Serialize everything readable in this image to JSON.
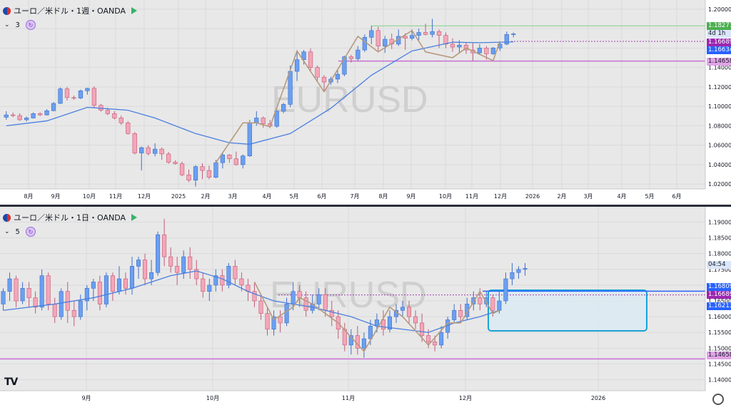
{
  "colors": {
    "up": "#6b9ff0",
    "down": "#f5a6b8",
    "ma": "#4a7fe0",
    "zigzag": "#b59a7e",
    "res_line": "#7fd08a",
    "sup_line": "#c86fd2",
    "dash_line": "#a03fb0",
    "box_stroke": "#1aa3d6",
    "box_fill": "#dceaf2",
    "hline_blue": "#2962ff",
    "tag_green": "#4caf50",
    "tag_purple": "#9c27b0",
    "tag_blue": "#2962ff",
    "tag_pink": "#e1a4e8",
    "tag_light": "#8fb4f0"
  },
  "top": {
    "title": "ユーロ／米ドル・1週・OANDA",
    "sub_count": "3",
    "watermark": "EURUSD",
    "x_labels": [
      "8月",
      "9月",
      "10月",
      "11月",
      "12月",
      "2025",
      "2月",
      "3月",
      "4月",
      "5月",
      "6月",
      "7月",
      "8月",
      "9月",
      "10月",
      "11月",
      "12月",
      "2026",
      "2月",
      "3月",
      "4月",
      "5月",
      "6月"
    ],
    "y_labels": [
      "1.20000",
      "1.18000",
      "1.16000",
      "1.14000",
      "1.12000",
      "1.10000",
      "1.08000",
      "1.06000",
      "1.04000",
      "1.02000"
    ],
    "tags": {
      "res": "1.18277",
      "countdown": "4d 1h",
      "price": "1.16689",
      "ma": "1.16634",
      "sup": "1.14658"
    },
    "ylim": [
      1.015,
      1.205
    ],
    "candles": [
      [
        1.0888,
        1.0912,
        1.0862,
        1.095
      ],
      [
        1.0912,
        1.0905,
        1.0888,
        1.0936
      ],
      [
        1.0905,
        1.0862,
        1.085,
        1.0928
      ],
      [
        1.0862,
        1.088,
        1.0845,
        1.0895
      ],
      [
        1.088,
        1.0925,
        1.0874,
        1.0938
      ],
      [
        1.0925,
        1.0912,
        1.09,
        1.094
      ],
      [
        1.0912,
        1.0955,
        1.0905,
        1.097
      ],
      [
        1.0955,
        1.103,
        1.095,
        1.1045
      ],
      [
        1.103,
        1.118,
        1.1025,
        1.1195
      ],
      [
        1.118,
        1.109,
        1.106,
        1.12
      ],
      [
        1.109,
        1.1085,
        1.1068,
        1.111
      ],
      [
        1.1085,
        1.116,
        1.1075,
        1.1172
      ],
      [
        1.116,
        1.1185,
        1.112,
        1.119
      ],
      [
        1.1185,
        1.101,
        1.0985,
        1.1205
      ],
      [
        1.101,
        1.096,
        1.0945,
        1.1025
      ],
      [
        1.096,
        1.0925,
        1.091,
        1.0985
      ],
      [
        1.0925,
        1.088,
        1.0865,
        1.095
      ],
      [
        1.088,
        1.083,
        1.081,
        1.0905
      ],
      [
        1.083,
        1.072,
        1.071,
        1.0848
      ],
      [
        1.072,
        1.052,
        1.0505,
        1.0735
      ],
      [
        1.052,
        1.0575,
        1.034,
        1.0585
      ],
      [
        1.0575,
        1.0515,
        1.0495,
        1.06
      ],
      [
        1.0515,
        1.056,
        1.0485,
        1.062
      ],
      [
        1.056,
        1.051,
        1.045,
        1.0575
      ],
      [
        1.051,
        1.0425,
        1.041,
        1.053
      ],
      [
        1.0425,
        1.041,
        1.04,
        1.0445
      ],
      [
        1.041,
        1.0295,
        1.028,
        1.043
      ],
      [
        1.0295,
        1.024,
        1.022,
        1.035
      ],
      [
        1.024,
        1.038,
        1.0175,
        1.0395
      ],
      [
        1.038,
        1.034,
        1.025,
        1.0415
      ],
      [
        1.034,
        1.027,
        1.025,
        1.039
      ],
      [
        1.027,
        1.042,
        1.026,
        1.045
      ],
      [
        1.042,
        1.05,
        1.036,
        1.053
      ],
      [
        1.05,
        1.046,
        1.042,
        1.051
      ],
      [
        1.046,
        1.04,
        1.039,
        1.0535
      ],
      [
        1.04,
        1.049,
        1.036,
        1.0505
      ],
      [
        1.049,
        1.083,
        1.048,
        1.086
      ],
      [
        1.083,
        1.088,
        1.08,
        1.095
      ],
      [
        1.088,
        1.082,
        1.078,
        1.0895
      ],
      [
        1.082,
        1.0795,
        1.0775,
        1.086
      ],
      [
        1.0795,
        1.095,
        1.078,
        1.096
      ],
      [
        1.095,
        1.102,
        1.093,
        1.1035
      ],
      [
        1.102,
        1.136,
        1.099,
        1.142
      ],
      [
        1.136,
        1.148,
        1.126,
        1.157
      ],
      [
        1.148,
        1.156,
        1.143,
        1.158
      ],
      [
        1.156,
        1.14,
        1.136,
        1.1595
      ],
      [
        1.14,
        1.13,
        1.126,
        1.142
      ],
      [
        1.13,
        1.125,
        1.115,
        1.132
      ],
      [
        1.125,
        1.128,
        1.122,
        1.1305
      ],
      [
        1.128,
        1.133,
        1.124,
        1.137
      ],
      [
        1.133,
        1.151,
        1.131,
        1.152
      ],
      [
        1.151,
        1.149,
        1.145,
        1.153
      ],
      [
        1.149,
        1.158,
        1.147,
        1.162
      ],
      [
        1.158,
        1.171,
        1.156,
        1.174
      ],
      [
        1.171,
        1.178,
        1.164,
        1.183
      ],
      [
        1.178,
        1.162,
        1.157,
        1.182
      ],
      [
        1.162,
        1.169,
        1.155,
        1.1725
      ],
      [
        1.169,
        1.164,
        1.159,
        1.175
      ],
      [
        1.164,
        1.172,
        1.162,
        1.179
      ],
      [
        1.172,
        1.17,
        1.158,
        1.175
      ],
      [
        1.17,
        1.173,
        1.168,
        1.179
      ],
      [
        1.173,
        1.176,
        1.168,
        1.18
      ],
      [
        1.176,
        1.174,
        1.173,
        1.185
      ],
      [
        1.174,
        1.177,
        1.171,
        1.19
      ],
      [
        1.177,
        1.173,
        1.16,
        1.179
      ],
      [
        1.173,
        1.164,
        1.16,
        1.176
      ],
      [
        1.164,
        1.161,
        1.156,
        1.17
      ],
      [
        1.161,
        1.163,
        1.155,
        1.168
      ],
      [
        1.163,
        1.158,
        1.154,
        1.166
      ],
      [
        1.158,
        1.155,
        1.147,
        1.165
      ],
      [
        1.155,
        1.16,
        1.153,
        1.164
      ],
      [
        1.16,
        1.154,
        1.148,
        1.162
      ],
      [
        1.154,
        1.16,
        1.153,
        1.161
      ],
      [
        1.16,
        1.164,
        1.157,
        1.166
      ],
      [
        1.164,
        1.174,
        1.163,
        1.177
      ],
      [
        1.174,
        1.1745,
        1.171,
        1.176
      ]
    ],
    "ma": [
      [
        0,
        1.08
      ],
      [
        6,
        1.085
      ],
      [
        12,
        1.099
      ],
      [
        18,
        1.096
      ],
      [
        22,
        1.088
      ],
      [
        28,
        1.072
      ],
      [
        33,
        1.0625
      ],
      [
        36,
        1.061
      ],
      [
        42,
        1.072
      ],
      [
        48,
        1.098
      ],
      [
        54,
        1.132
      ],
      [
        60,
        1.157
      ],
      [
        66,
        1.166
      ],
      [
        70,
        1.1655
      ],
      [
        75,
        1.1663
      ]
    ],
    "zigzag": [
      [
        31,
        1.042
      ],
      [
        35,
        1.083
      ],
      [
        37,
        1.083
      ],
      [
        39,
        1.079
      ],
      [
        43,
        1.157
      ],
      [
        47,
        1.115
      ],
      [
        52,
        1.172
      ],
      [
        55,
        1.156
      ],
      [
        60,
        1.178
      ],
      [
        62,
        1.156
      ],
      [
        66,
        1.15
      ],
      [
        68,
        1.16
      ],
      [
        72,
        1.147
      ],
      [
        73,
        1.167
      ]
    ],
    "res_level": 1.18277,
    "sup_level": 1.14658,
    "price_level": 1.16689
  },
  "bottom": {
    "title": "ユーロ／米ドル・1日・OANDA",
    "sub_count": "5",
    "watermark": "EURUSD",
    "x_labels": [
      "9月",
      "10月",
      "11月",
      "12月",
      "2026"
    ],
    "y_labels": [
      "1.19000",
      "1.18500",
      "1.18000",
      "1.17500",
      "1.17000",
      "1.16500",
      "1.16000",
      "1.15500",
      "1.15000",
      "1.14500",
      "1.14000"
    ],
    "tags": {
      "countdown": "04:54",
      "blue": "1.16809",
      "price": "1.16689",
      "ma": "1.16213",
      "sup": "1.14658"
    },
    "ylim": [
      1.1365,
      1.1935
    ],
    "candles": [
      [
        1.164,
        1.168,
        1.162,
        1.169
      ],
      [
        1.168,
        1.172,
        1.165,
        1.174
      ],
      [
        1.172,
        1.165,
        1.163,
        1.173
      ],
      [
        1.165,
        1.169,
        1.164,
        1.171
      ],
      [
        1.169,
        1.166,
        1.163,
        1.171
      ],
      [
        1.166,
        1.163,
        1.161,
        1.168
      ],
      [
        1.163,
        1.173,
        1.162,
        1.175
      ],
      [
        1.173,
        1.164,
        1.162,
        1.174
      ],
      [
        1.164,
        1.16,
        1.158,
        1.166
      ],
      [
        1.16,
        1.168,
        1.159,
        1.169
      ],
      [
        1.168,
        1.162,
        1.158,
        1.171
      ],
      [
        1.162,
        1.16,
        1.157,
        1.165
      ],
      [
        1.16,
        1.165,
        1.159,
        1.167
      ],
      [
        1.165,
        1.169,
        1.162,
        1.17
      ],
      [
        1.169,
        1.171,
        1.165,
        1.172
      ],
      [
        1.171,
        1.164,
        1.162,
        1.173
      ],
      [
        1.164,
        1.173,
        1.163,
        1.174
      ],
      [
        1.173,
        1.168,
        1.165,
        1.174
      ],
      [
        1.168,
        1.172,
        1.167,
        1.176
      ],
      [
        1.172,
        1.169,
        1.167,
        1.174
      ],
      [
        1.169,
        1.176,
        1.167,
        1.179
      ],
      [
        1.176,
        1.178,
        1.172,
        1.179
      ],
      [
        1.178,
        1.172,
        1.17,
        1.18
      ],
      [
        1.172,
        1.174,
        1.17,
        1.178
      ],
      [
        1.174,
        1.186,
        1.173,
        1.187
      ],
      [
        1.186,
        1.179,
        1.176,
        1.191
      ],
      [
        1.179,
        1.176,
        1.174,
        1.182
      ],
      [
        1.176,
        1.174,
        1.17,
        1.179
      ],
      [
        1.174,
        1.179,
        1.172,
        1.181
      ],
      [
        1.179,
        1.175,
        1.172,
        1.182
      ],
      [
        1.175,
        1.172,
        1.17,
        1.178
      ],
      [
        1.172,
        1.168,
        1.166,
        1.174
      ],
      [
        1.168,
        1.17,
        1.165,
        1.172
      ],
      [
        1.17,
        1.173,
        1.168,
        1.175
      ],
      [
        1.173,
        1.17,
        1.168,
        1.175
      ],
      [
        1.17,
        1.176,
        1.169,
        1.177
      ],
      [
        1.176,
        1.172,
        1.17,
        1.178
      ],
      [
        1.172,
        1.17,
        1.168,
        1.174
      ],
      [
        1.17,
        1.168,
        1.165,
        1.172
      ],
      [
        1.168,
        1.165,
        1.163,
        1.171
      ],
      [
        1.165,
        1.161,
        1.159,
        1.167
      ],
      [
        1.161,
        1.156,
        1.154,
        1.163
      ],
      [
        1.156,
        1.16,
        1.154,
        1.162
      ],
      [
        1.16,
        1.158,
        1.155,
        1.162
      ],
      [
        1.158,
        1.164,
        1.157,
        1.166
      ],
      [
        1.164,
        1.168,
        1.162,
        1.171
      ],
      [
        1.168,
        1.166,
        1.163,
        1.17
      ],
      [
        1.166,
        1.162,
        1.16,
        1.168
      ],
      [
        1.162,
        1.164,
        1.161,
        1.167
      ],
      [
        1.164,
        1.167,
        1.162,
        1.169
      ],
      [
        1.167,
        1.162,
        1.16,
        1.169
      ],
      [
        1.162,
        1.16,
        1.157,
        1.165
      ],
      [
        1.16,
        1.156,
        1.153,
        1.162
      ],
      [
        1.156,
        1.151,
        1.149,
        1.158
      ],
      [
        1.151,
        1.154,
        1.148,
        1.156
      ],
      [
        1.154,
        1.15,
        1.148,
        1.157
      ],
      [
        1.15,
        1.153,
        1.147,
        1.155
      ],
      [
        1.153,
        1.157,
        1.151,
        1.159
      ],
      [
        1.157,
        1.159,
        1.155,
        1.161
      ],
      [
        1.159,
        1.156,
        1.154,
        1.162
      ],
      [
        1.156,
        1.16,
        1.155,
        1.162
      ],
      [
        1.16,
        1.162,
        1.158,
        1.164
      ],
      [
        1.162,
        1.163,
        1.16,
        1.165
      ],
      [
        1.163,
        1.16,
        1.158,
        1.165
      ],
      [
        1.16,
        1.158,
        1.156,
        1.162
      ],
      [
        1.158,
        1.154,
        1.152,
        1.161
      ],
      [
        1.154,
        1.152,
        1.15,
        1.156
      ],
      [
        1.152,
        1.151,
        1.149,
        1.154
      ],
      [
        1.151,
        1.155,
        1.15,
        1.157
      ],
      [
        1.155,
        1.159,
        1.153,
        1.16
      ],
      [
        1.159,
        1.162,
        1.158,
        1.164
      ],
      [
        1.162,
        1.16,
        1.158,
        1.164
      ],
      [
        1.16,
        1.164,
        1.159,
        1.166
      ],
      [
        1.164,
        1.166,
        1.162,
        1.168
      ],
      [
        1.166,
        1.164,
        1.162,
        1.169
      ],
      [
        1.164,
        1.166,
        1.163,
        1.168
      ],
      [
        1.166,
        1.162,
        1.16,
        1.167
      ],
      [
        1.162,
        1.165,
        1.161,
        1.168
      ],
      [
        1.165,
        1.172,
        1.164,
        1.174
      ],
      [
        1.172,
        1.174,
        1.17,
        1.177
      ],
      [
        1.174,
        1.175,
        1.172,
        1.176
      ],
      [
        1.175,
        1.1753,
        1.173,
        1.177
      ]
    ],
    "ma": [
      [
        0,
        1.162
      ],
      [
        8,
        1.164
      ],
      [
        14,
        1.166
      ],
      [
        20,
        1.169
      ],
      [
        26,
        1.173
      ],
      [
        30,
        1.1745
      ],
      [
        34,
        1.172
      ],
      [
        38,
        1.168
      ],
      [
        42,
        1.165
      ],
      [
        48,
        1.163
      ],
      [
        54,
        1.16
      ],
      [
        58,
        1.157
      ],
      [
        62,
        1.156
      ],
      [
        66,
        1.155
      ],
      [
        70,
        1.158
      ],
      [
        74,
        1.16
      ],
      [
        77,
        1.162
      ]
    ],
    "zigzag": [
      [
        39,
        1.171
      ],
      [
        42,
        1.159
      ],
      [
        45,
        1.163
      ],
      [
        46,
        1.166
      ],
      [
        48,
        1.164
      ],
      [
        52,
        1.158
      ],
      [
        56,
        1.149
      ],
      [
        60,
        1.163
      ],
      [
        62,
        1.16
      ],
      [
        66,
        1.151
      ],
      [
        69,
        1.158
      ],
      [
        71,
        1.158
      ],
      [
        74,
        1.168
      ],
      [
        76,
        1.161
      ],
      [
        77,
        1.162
      ]
    ],
    "hline_level": 1.16809,
    "dash_level": 1.16689,
    "sup_level": 1.14658,
    "box": {
      "y_top": 1.1684,
      "y_bot": 1.1555
    }
  }
}
